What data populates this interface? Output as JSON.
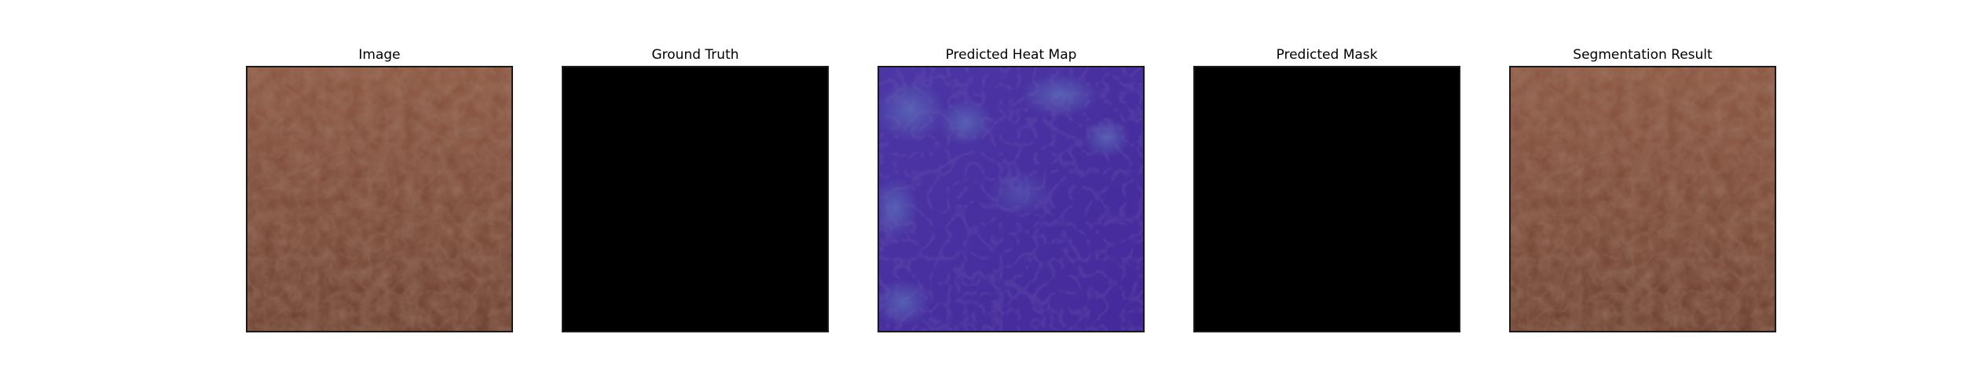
{
  "figure": {
    "panels": [
      {
        "title": "Image",
        "content": "leather-texture",
        "base_color": "#7b4a36"
      },
      {
        "title": "Ground Truth",
        "content": "solid",
        "base_color": "#000000"
      },
      {
        "title": "Predicted Heat Map",
        "content": "heatmap-overlay",
        "base_color": "#4a2f9e"
      },
      {
        "title": "Predicted Mask",
        "content": "solid",
        "base_color": "#000000"
      },
      {
        "title": "Segmentation Result",
        "content": "leather-texture",
        "base_color": "#7b4a36"
      }
    ]
  }
}
